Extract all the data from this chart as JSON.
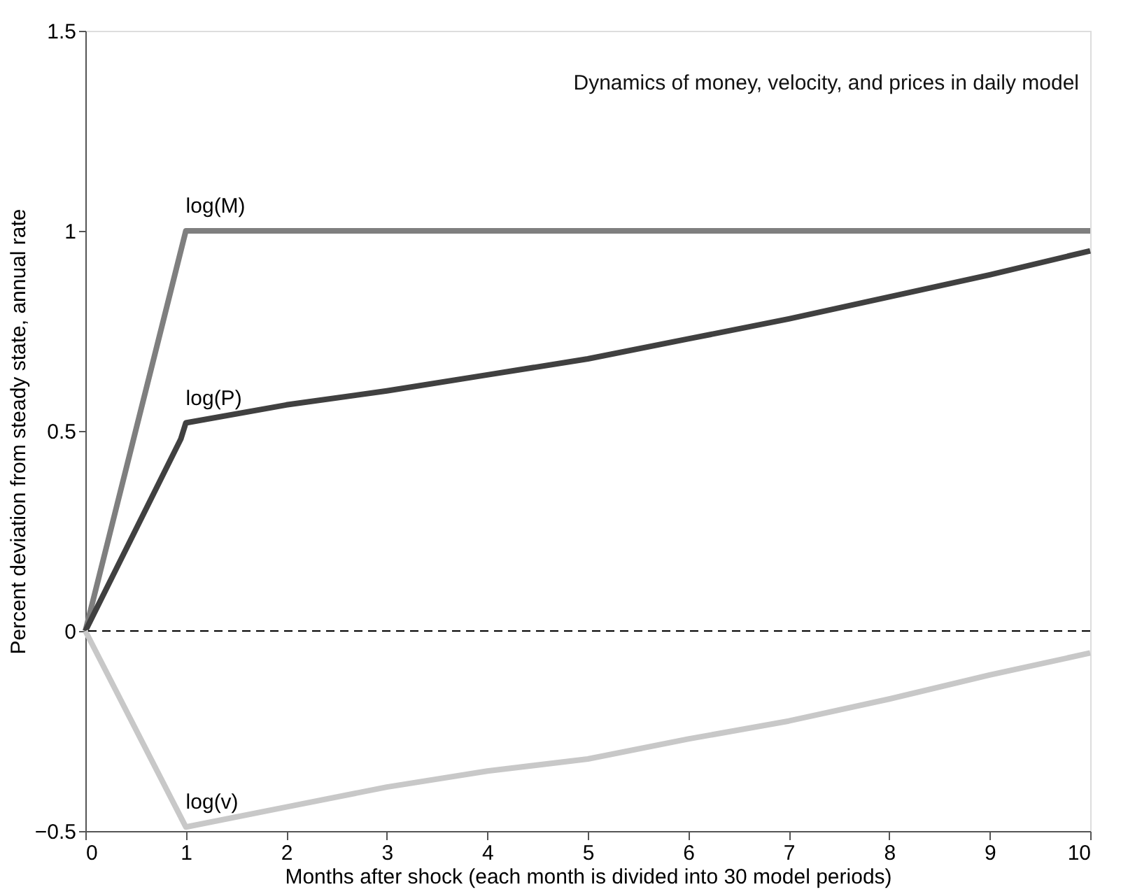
{
  "chart_data": {
    "type": "line",
    "title": "Dynamics of money, velocity, and prices in daily model",
    "xlabel": "Months after shock (each month is divided into 30 model periods)",
    "ylabel": "Percent deviation from steady state, annual rate",
    "xlim": [
      0,
      10
    ],
    "xticks": [
      0,
      1,
      2,
      3,
      4,
      5,
      6,
      7,
      8,
      9,
      10
    ],
    "ylim": [
      -0.5,
      1.5
    ],
    "yticks": [
      -0.5,
      0,
      0.5,
      1,
      1.5
    ],
    "grid": false,
    "legend": false,
    "line_style": "solid",
    "marker": "none",
    "series": [
      {
        "name": "log(M)",
        "color": "#7f7f7f",
        "x": [
          0,
          1,
          10
        ],
        "values": [
          0,
          1,
          1
        ]
      },
      {
        "name": "log(P)",
        "color": "#404040",
        "x": [
          0,
          0.95,
          1,
          2,
          3,
          4,
          5,
          6,
          7,
          8,
          9,
          10
        ],
        "values": [
          0,
          0.48,
          0.52,
          0.565,
          0.6,
          0.64,
          0.68,
          0.73,
          0.78,
          0.835,
          0.89,
          0.95
        ]
      },
      {
        "name": "log(v)",
        "color": "#c8c8c8",
        "x": [
          0,
          1,
          2,
          3,
          4,
          5,
          6,
          7,
          8,
          9,
          10
        ],
        "values": [
          0,
          -0.49,
          -0.44,
          -0.39,
          -0.35,
          -0.32,
          -0.27,
          -0.225,
          -0.17,
          -0.11,
          -0.055
        ]
      }
    ],
    "ref_lines": [
      {
        "axis": "y",
        "value": 0,
        "color": "#000000",
        "line_style": "dashed"
      }
    ]
  }
}
